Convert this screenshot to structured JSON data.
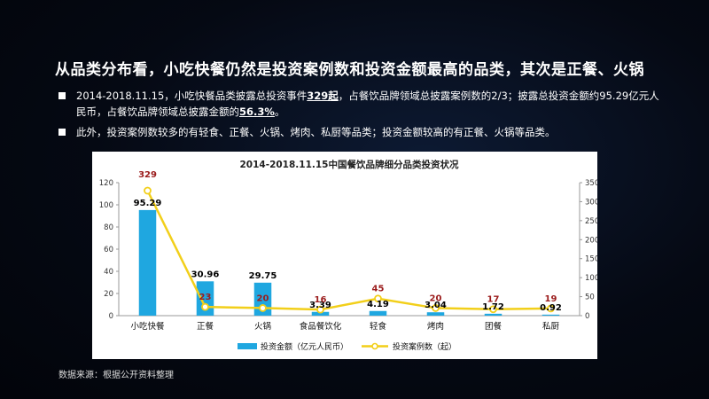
{
  "headline": "从品类分布看，小吃快餐仍然是投资案例数和投资金额最高的品类，其次是正餐、火锅",
  "bullets": [
    {
      "parts": [
        {
          "text": "2014-2018.11.15，小吃快餐品类披露总投资事件",
          "hl": false
        },
        {
          "text": "329起",
          "hl": true
        },
        {
          "text": "，占餐饮品牌领域总披露案例数的2/3；披露总投资金额约95.29亿元人民币，占餐饮品牌领域总披露金额的",
          "hl": false
        },
        {
          "text": "56.3%",
          "hl": true
        },
        {
          "text": "。",
          "hl": false
        }
      ]
    },
    {
      "parts": [
        {
          "text": "此外，投资案例数较多的有轻食、正餐、火锅、烤肉、私厨等品类；投资金额较高的有正餐、火锅等品类。",
          "hl": false
        }
      ]
    }
  ],
  "chart_data": {
    "type": "bar",
    "title": "2014-2018.11.15中国餐饮品牌细分品类投资状况",
    "categories": [
      "小吃快餐",
      "正餐",
      "火锅",
      "食品餐饮化",
      "轻食",
      "烤肉",
      "团餐",
      "私厨"
    ],
    "series": [
      {
        "name": "投资金额（亿元人民币）",
        "type": "bar",
        "axis": "left",
        "color": "#1fa7e0",
        "values": [
          95.29,
          30.96,
          29.75,
          3.39,
          4.19,
          3.04,
          1.72,
          0.92
        ]
      },
      {
        "name": "投资案例数（起）",
        "type": "line",
        "axis": "right",
        "color": "#f2cf1a",
        "values": [
          329,
          23,
          20,
          16,
          45,
          20,
          17,
          19
        ]
      }
    ],
    "ylim_left": [
      0,
      120
    ],
    "yticks_left": [
      0,
      20,
      40,
      60,
      80,
      100,
      120
    ],
    "ylim_right": [
      0,
      350
    ],
    "yticks_right": [
      0,
      50,
      100,
      150,
      200,
      250,
      300,
      350
    ],
    "bar_label_color": "#000000",
    "line_label_color": "#9b1c1c",
    "legend_position": "bottom"
  },
  "source_note": "数据来源：根据公开资料整理"
}
